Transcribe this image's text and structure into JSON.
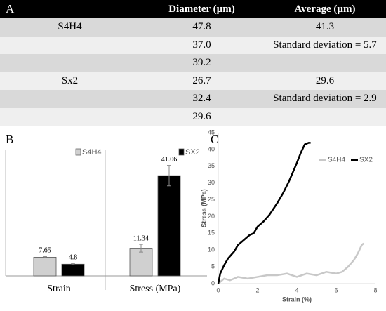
{
  "table": {
    "header": [
      "A",
      "Diameter (µm)",
      "Average  (µm)"
    ],
    "rows": [
      [
        "S4H4",
        "47.8",
        "41.3"
      ],
      [
        null,
        "37.0",
        "Standard deviation = 5.7"
      ],
      [
        null,
        "39.2",
        null
      ],
      [
        "Sx2",
        "26.7",
        "29.6"
      ],
      [
        null,
        "32.4",
        "Standard deviation = 2.9"
      ],
      [
        null,
        "29.6",
        null
      ]
    ]
  },
  "chart_data": [
    {
      "type": "bar",
      "panel": "B",
      "categories": [
        "Strain",
        "Stress (MPa)"
      ],
      "series": [
        {
          "name": "S4H4",
          "color": "#d0d0d0",
          "values": [
            7.65,
            11.34
          ],
          "errors": [
            0.3,
            1.6
          ]
        },
        {
          "name": "SX2",
          "color": "#000000",
          "values": [
            4.8,
            41.06
          ],
          "errors": [
            0.3,
            4.2
          ]
        }
      ]
    },
    {
      "type": "line",
      "panel": "C",
      "xlabel": "Strain (%)",
      "ylabel": "Stress (MPa)",
      "xlim": [
        0,
        8
      ],
      "xticks": [
        0,
        2,
        4,
        6,
        8
      ],
      "ylim": [
        0,
        45
      ],
      "yticks": [
        0,
        5,
        10,
        15,
        20,
        25,
        30,
        35,
        40,
        45
      ],
      "series": [
        {
          "name": "S4H4",
          "color": "#c8c8c8",
          "x": [
            0,
            0.3,
            0.6,
            1,
            1.5,
            2,
            2.5,
            3,
            3.5,
            4,
            4.5,
            5,
            5.5,
            6,
            6.3,
            6.6,
            6.9,
            7.1,
            7.3,
            7.4
          ],
          "values": [
            0,
            1.5,
            1,
            2,
            1.5,
            2,
            2.5,
            2.5,
            3,
            2,
            3,
            2.5,
            3.5,
            3,
            3.5,
            5,
            7,
            9,
            11.5,
            12
          ]
        },
        {
          "name": "SX2",
          "color": "#000000",
          "x": [
            0,
            0.1,
            0.3,
            0.5,
            0.8,
            1,
            1.3,
            1.6,
            1.8,
            2,
            2.3,
            2.6,
            3,
            3.3,
            3.6,
            4,
            4.2,
            4.4,
            4.6,
            4.7
          ],
          "values": [
            0,
            3,
            5.5,
            7.5,
            9.5,
            11.5,
            13,
            14.5,
            15,
            17,
            18.5,
            20.5,
            24,
            27,
            30.5,
            36,
            39,
            41.5,
            42,
            42
          ]
        }
      ]
    }
  ]
}
